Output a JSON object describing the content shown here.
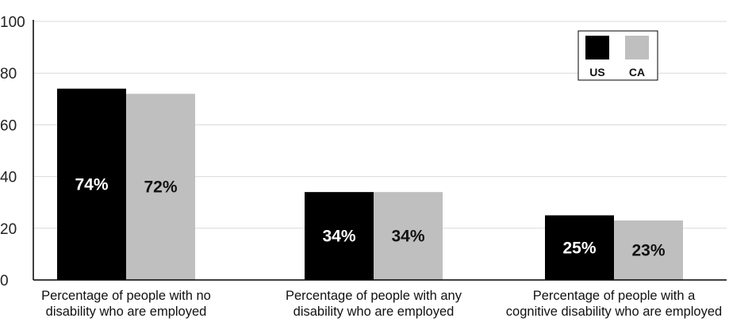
{
  "chart_data": {
    "type": "bar",
    "title": "",
    "xlabel": "",
    "ylabel": "",
    "ylim": [
      0,
      100
    ],
    "yticks": [
      0,
      20,
      40,
      60,
      80,
      100
    ],
    "grid": true,
    "legend_position": "top-right",
    "categories": [
      [
        "Percentage of people with no",
        "disability who are employed"
      ],
      [
        "Percentage of people with any",
        "disability who are employed"
      ],
      [
        "Percentage of people with a",
        "cognitive disability who are employed"
      ]
    ],
    "series": [
      {
        "name": "US",
        "values": [
          74,
          34,
          25
        ],
        "labels": [
          "74%",
          "34%",
          "25%"
        ],
        "color": "#000000",
        "label_color": "#ffffff"
      },
      {
        "name": "CA",
        "values": [
          72,
          34,
          23
        ],
        "labels": [
          "72%",
          "34%",
          "23%"
        ],
        "color": "#bfbfbf",
        "label_color": "#111111"
      }
    ],
    "colors": {
      "gridline": "#d9d9d9",
      "axis": "#000000"
    }
  }
}
